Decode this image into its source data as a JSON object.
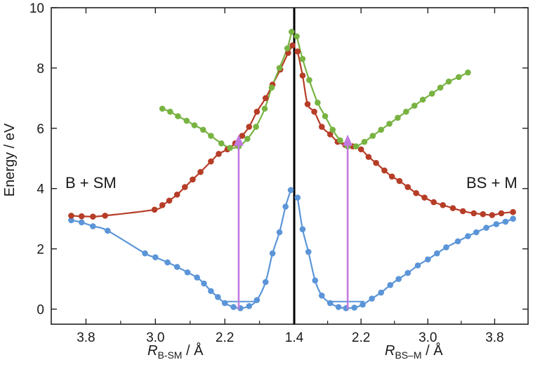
{
  "chart_data": {
    "type": "line",
    "title": "",
    "ylabel": "Energy / eV",
    "ylim": [
      -0.5,
      10
    ],
    "yticks": [
      "0",
      "2",
      "4",
      "6",
      "8",
      "10"
    ],
    "xlabel_left": {
      "main": "R",
      "sub": "B-SM",
      "unit": " / Å"
    },
    "xlabel_right": {
      "main": "R",
      "sub": "BS–M",
      "unit": " / Å"
    },
    "x_left_range": [
      4.2,
      1.4
    ],
    "x_right_range": [
      1.4,
      4.2
    ],
    "xticks": [
      "3.8",
      "3.0",
      "2.2",
      "1.4",
      "2.2",
      "3.0",
      "3.8"
    ],
    "xtick_positions": [
      {
        "side": "left",
        "r": 3.8
      },
      {
        "side": "left",
        "r": 3.0
      },
      {
        "side": "left",
        "r": 2.2
      },
      {
        "side": "mid",
        "r": 1.4
      },
      {
        "side": "right",
        "r": 2.2
      },
      {
        "side": "right",
        "r": 3.0
      },
      {
        "side": "right",
        "r": 3.8
      }
    ],
    "annotations": {
      "left": "B + SM",
      "right": "BS + M"
    },
    "colors": {
      "blue": "#5b95d8",
      "red": "#b63d27",
      "green": "#78b342",
      "arrow": "#c27ae0",
      "divider": "#000000",
      "axis": "#222222"
    },
    "series": [
      {
        "name": "blue-left",
        "color": "#5b95d8",
        "side": "left",
        "points": [
          [
            3.97,
            2.95
          ],
          [
            3.85,
            2.88
          ],
          [
            3.72,
            2.75
          ],
          [
            3.55,
            2.6
          ],
          [
            3.12,
            1.85
          ],
          [
            3.0,
            1.72
          ],
          [
            2.86,
            1.55
          ],
          [
            2.75,
            1.4
          ],
          [
            2.63,
            1.22
          ],
          [
            2.52,
            1.05
          ],
          [
            2.44,
            0.85
          ],
          [
            2.36,
            0.6
          ],
          [
            2.28,
            0.4
          ],
          [
            2.2,
            0.2
          ],
          [
            2.1,
            0.07
          ],
          [
            2.02,
            0.03
          ],
          [
            1.92,
            0.1
          ],
          [
            1.83,
            0.3
          ],
          [
            1.73,
            0.9
          ],
          [
            1.65,
            1.85
          ],
          [
            1.57,
            2.55
          ],
          [
            1.5,
            3.4
          ],
          [
            1.44,
            3.95
          ]
        ]
      },
      {
        "name": "blue-right",
        "color": "#5b95d8",
        "side": "right",
        "points": [
          [
            1.44,
            3.7
          ],
          [
            1.5,
            2.65
          ],
          [
            1.57,
            1.9
          ],
          [
            1.65,
            0.95
          ],
          [
            1.73,
            0.45
          ],
          [
            1.83,
            0.2
          ],
          [
            1.93,
            0.07
          ],
          [
            2.02,
            0.03
          ],
          [
            2.12,
            0.05
          ],
          [
            2.22,
            0.15
          ],
          [
            2.33,
            0.35
          ],
          [
            2.44,
            0.55
          ],
          [
            2.55,
            0.8
          ],
          [
            2.65,
            1.0
          ],
          [
            2.76,
            1.2
          ],
          [
            2.88,
            1.45
          ],
          [
            3.0,
            1.65
          ],
          [
            3.11,
            1.85
          ],
          [
            3.22,
            2.05
          ],
          [
            3.36,
            2.25
          ],
          [
            3.48,
            2.42
          ],
          [
            3.58,
            2.55
          ],
          [
            3.7,
            2.7
          ],
          [
            3.82,
            2.82
          ],
          [
            3.93,
            2.9
          ],
          [
            4.02,
            3.0
          ]
        ]
      },
      {
        "name": "red-left",
        "color": "#b63d27",
        "side": "left",
        "points": [
          [
            3.97,
            3.1
          ],
          [
            3.85,
            3.08
          ],
          [
            3.72,
            3.07
          ],
          [
            3.58,
            3.1
          ],
          [
            3.01,
            3.3
          ],
          [
            2.92,
            3.45
          ],
          [
            2.84,
            3.6
          ],
          [
            2.75,
            3.8
          ],
          [
            2.66,
            4.05
          ],
          [
            2.57,
            4.3
          ],
          [
            2.48,
            4.55
          ],
          [
            2.36,
            4.9
          ],
          [
            2.27,
            5.15
          ],
          [
            2.17,
            5.3
          ],
          [
            2.08,
            5.5
          ],
          [
            2.0,
            5.75
          ],
          [
            1.92,
            6.05
          ],
          [
            1.83,
            6.55
          ],
          [
            1.73,
            7.0
          ],
          [
            1.65,
            7.45
          ],
          [
            1.56,
            7.95
          ],
          [
            1.47,
            8.5
          ],
          [
            1.42,
            8.75
          ]
        ]
      },
      {
        "name": "red-right",
        "color": "#b63d27",
        "side": "right",
        "points": [
          [
            1.44,
            8.55
          ],
          [
            1.5,
            7.75
          ],
          [
            1.56,
            6.8
          ],
          [
            1.64,
            6.55
          ],
          [
            1.73,
            6.05
          ],
          [
            1.83,
            5.8
          ],
          [
            1.92,
            5.55
          ],
          [
            2.01,
            5.45
          ],
          [
            2.1,
            5.4
          ],
          [
            2.2,
            5.3
          ],
          [
            2.29,
            5.05
          ],
          [
            2.38,
            4.85
          ],
          [
            2.48,
            4.6
          ],
          [
            2.57,
            4.4
          ],
          [
            2.66,
            4.25
          ],
          [
            2.76,
            4.05
          ],
          [
            2.86,
            3.85
          ],
          [
            2.96,
            3.7
          ],
          [
            3.07,
            3.55
          ],
          [
            3.18,
            3.45
          ],
          [
            3.3,
            3.35
          ],
          [
            3.42,
            3.25
          ],
          [
            3.55,
            3.18
          ],
          [
            3.66,
            3.15
          ],
          [
            3.77,
            3.12
          ],
          [
            3.88,
            3.18
          ],
          [
            4.02,
            3.22
          ]
        ]
      },
      {
        "name": "green-left",
        "color": "#78b342",
        "side": "left",
        "points": [
          [
            2.92,
            6.65
          ],
          [
            2.83,
            6.55
          ],
          [
            2.74,
            6.4
          ],
          [
            2.64,
            6.25
          ],
          [
            2.55,
            6.1
          ],
          [
            2.45,
            5.95
          ],
          [
            2.36,
            5.75
          ],
          [
            2.24,
            5.5
          ],
          [
            2.14,
            5.35
          ],
          [
            2.04,
            5.4
          ],
          [
            1.94,
            5.65
          ],
          [
            1.84,
            6.05
          ],
          [
            1.74,
            6.65
          ],
          [
            1.66,
            7.35
          ],
          [
            1.57,
            8.0
          ],
          [
            1.48,
            8.65
          ],
          [
            1.43,
            9.2
          ]
        ]
      },
      {
        "name": "green-right",
        "color": "#78b342",
        "side": "right",
        "points": [
          [
            1.43,
            9.05
          ],
          [
            1.5,
            8.3
          ],
          [
            1.58,
            7.6
          ],
          [
            1.68,
            6.85
          ],
          [
            1.77,
            6.4
          ],
          [
            1.86,
            5.95
          ],
          [
            1.95,
            5.6
          ],
          [
            2.04,
            5.4
          ],
          [
            2.14,
            5.4
          ],
          [
            2.24,
            5.55
          ],
          [
            2.34,
            5.75
          ],
          [
            2.44,
            5.95
          ],
          [
            2.54,
            6.15
          ],
          [
            2.64,
            6.35
          ],
          [
            2.74,
            6.55
          ],
          [
            2.84,
            6.75
          ],
          [
            2.94,
            6.95
          ],
          [
            3.05,
            7.15
          ],
          [
            3.15,
            7.35
          ],
          [
            3.25,
            7.55
          ],
          [
            3.37,
            7.7
          ],
          [
            3.48,
            7.85
          ]
        ]
      }
    ],
    "arrows": [
      {
        "side": "left",
        "r": 2.04,
        "y_from": 0.0,
        "y_to": 5.7
      },
      {
        "side": "right",
        "r": 2.04,
        "y_from": 0.0,
        "y_to": 5.7
      }
    ],
    "levels": [
      {
        "side": "left",
        "r_from": 2.18,
        "r_to": 1.84,
        "y": 0.25
      },
      {
        "side": "right",
        "r_from": 1.84,
        "r_to": 2.24,
        "y": 0.25
      }
    ]
  }
}
